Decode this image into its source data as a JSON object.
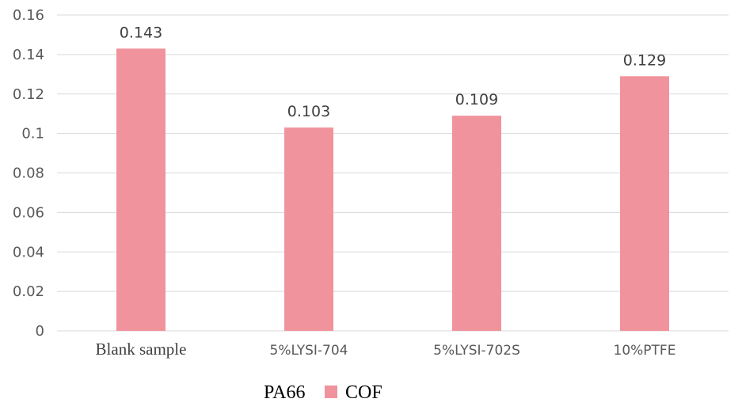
{
  "chart_data": {
    "type": "bar",
    "categories": [
      "Blank sample",
      "5%LYSI-704",
      "5%LYSI-702S",
      "10%PTFE"
    ],
    "series": [
      {
        "name": "COF",
        "values": [
          0.143,
          0.103,
          0.109,
          0.129
        ],
        "color": "#f0939c"
      }
    ],
    "data_labels": [
      "0.143",
      "0.103",
      "0.109",
      "0.129"
    ],
    "ylim": [
      0,
      0.16
    ],
    "yticks": [
      0,
      0.02,
      0.04,
      0.06,
      0.08,
      0.1,
      0.12,
      0.14,
      0.16
    ],
    "ytick_labels": [
      "0",
      "0.02",
      "0.04",
      "0.06",
      "0.08",
      "0.1",
      "0.12",
      "0.14",
      "0.16"
    ],
    "grid": true,
    "grid_color": "#d9d9d9",
    "legend": {
      "title": "PA66",
      "entry": "COF",
      "placement": "bottom-center"
    }
  }
}
